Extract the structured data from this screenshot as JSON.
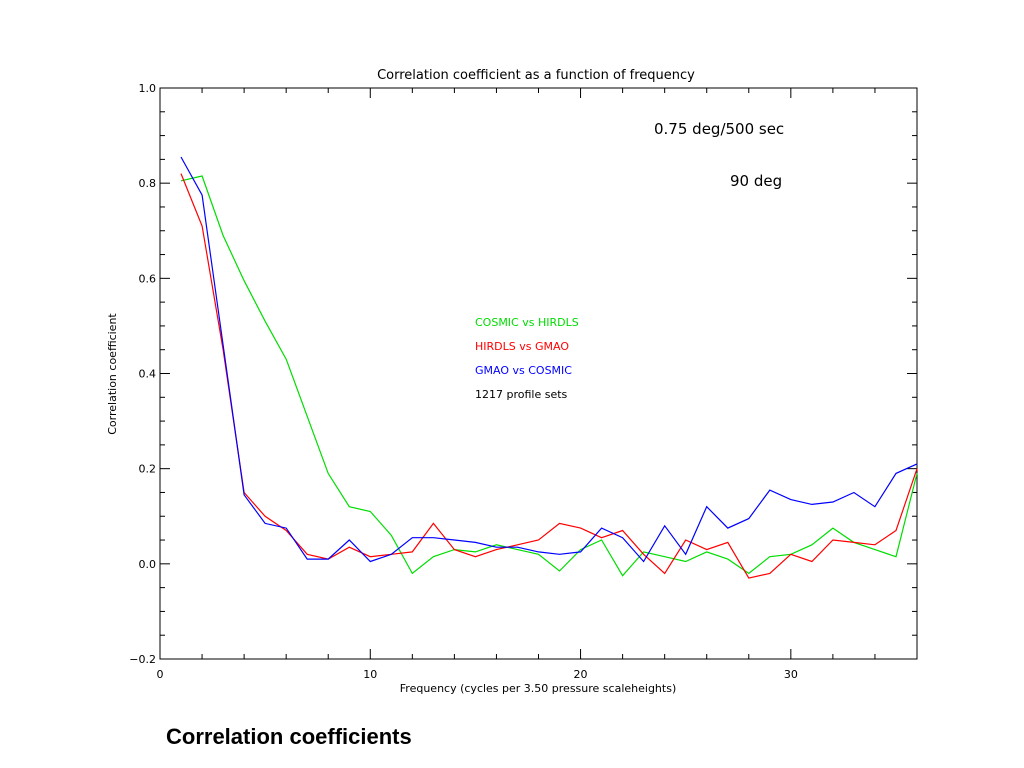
{
  "chart_data": {
    "type": "line",
    "title": "Correlation coefficient as a function of frequency",
    "xlabel": "Frequency (cycles per 3.50 pressure scaleheights)",
    "ylabel": "Correlation coefficient",
    "xlim": [
      0,
      36
    ],
    "ylim": [
      -0.2,
      1.0
    ],
    "x_ticks": [
      0,
      10,
      20,
      30
    ],
    "x_tick_labels": [
      "0",
      "10",
      "20",
      "30"
    ],
    "y_ticks": [
      -0.2,
      0.0,
      0.2,
      0.4,
      0.6,
      0.8,
      1.0
    ],
    "y_tick_labels": [
      "−0.2",
      "0.0",
      "0.2",
      "0.4",
      "0.6",
      "0.8",
      "1.0"
    ],
    "grid": false,
    "legend_placement": "center",
    "x": [
      1,
      2,
      3,
      4,
      5,
      6,
      7,
      8,
      9,
      10,
      11,
      12,
      13,
      14,
      15,
      16,
      17,
      18,
      19,
      20,
      21,
      22,
      23,
      24,
      25,
      26,
      27,
      28,
      29,
      30,
      31,
      32,
      33,
      34,
      35,
      36
    ],
    "series": [
      {
        "name": "COSMIC vs HIRDLS",
        "color": "#00dd00",
        "values": [
          0.805,
          0.815,
          0.69,
          0.595,
          0.51,
          0.43,
          0.31,
          0.19,
          0.12,
          0.11,
          0.06,
          -0.02,
          0.015,
          0.03,
          0.025,
          0.04,
          0.03,
          0.02,
          -0.015,
          0.03,
          0.05,
          -0.025,
          0.025,
          0.015,
          0.005,
          0.025,
          0.01,
          -0.02,
          0.015,
          0.02,
          0.04,
          0.075,
          0.045,
          0.03,
          0.015,
          0.19
        ]
      },
      {
        "name": "HIRDLS vs GMAO",
        "color": "#ff0000",
        "values": [
          0.82,
          0.71,
          0.45,
          0.15,
          0.1,
          0.07,
          0.02,
          0.01,
          0.035,
          0.015,
          0.02,
          0.025,
          0.085,
          0.03,
          0.015,
          0.03,
          0.04,
          0.05,
          0.085,
          0.075,
          0.055,
          0.07,
          0.02,
          -0.02,
          0.05,
          0.03,
          0.045,
          -0.03,
          -0.02,
          0.02,
          0.005,
          0.05,
          0.045,
          0.04,
          0.07,
          0.2
        ]
      },
      {
        "name": "GMAO vs COSMIC",
        "color": "#0000ff",
        "values": [
          0.855,
          0.775,
          0.46,
          0.145,
          0.085,
          0.075,
          0.01,
          0.01,
          0.05,
          0.005,
          0.02,
          0.055,
          0.055,
          0.05,
          0.045,
          0.035,
          0.035,
          0.025,
          0.02,
          0.025,
          0.075,
          0.055,
          0.005,
          0.08,
          0.02,
          0.12,
          0.075,
          0.095,
          0.155,
          0.135,
          0.125,
          0.13,
          0.15,
          0.12,
          0.19,
          0.21
        ]
      }
    ],
    "legend_note": "1217 profile sets",
    "annotations": [
      "0.75 deg/500 sec",
      "90 deg"
    ]
  },
  "caption": "Correlation coefficients"
}
